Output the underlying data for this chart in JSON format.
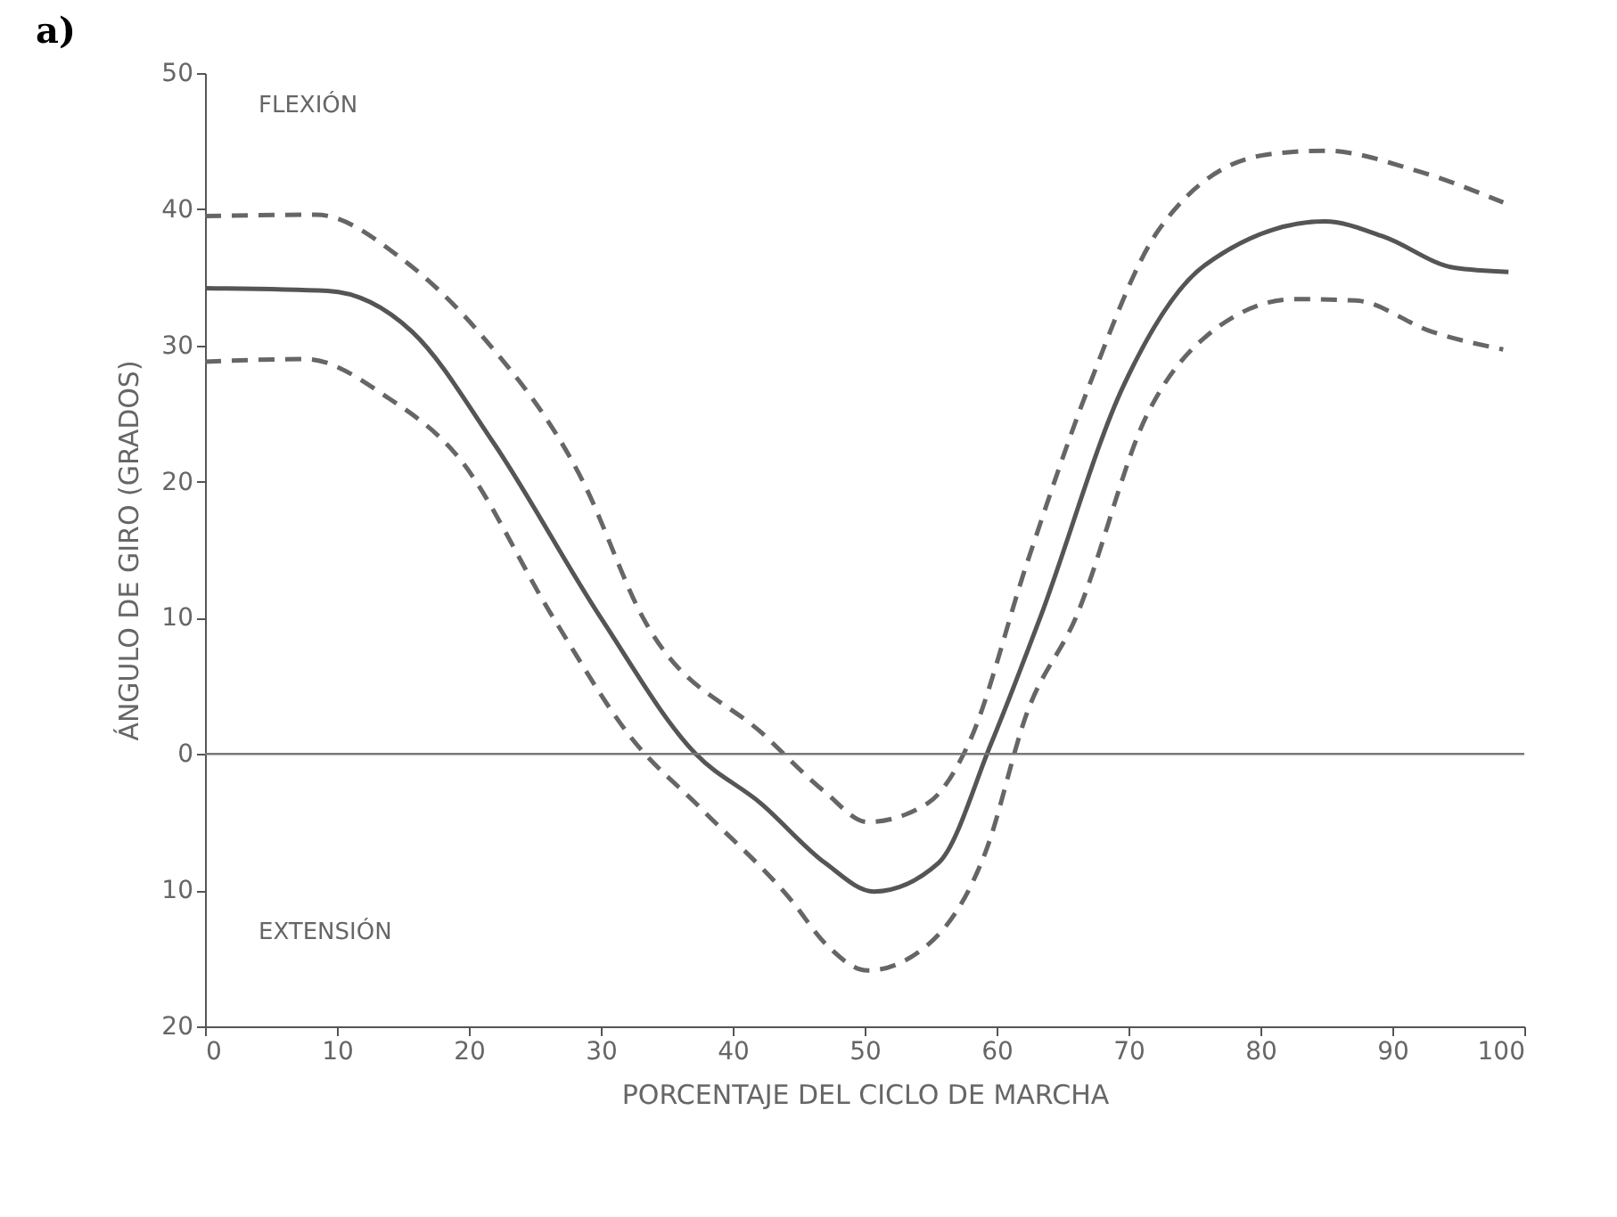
{
  "chart_data": {
    "type": "line",
    "title": "a)",
    "xlabel": "PORCENTAJE DEL CICLO DE MARCHA",
    "ylabel": "ÁNGULO DE GIRO (GRADOS)",
    "annotations": [
      "FLEXIÓN",
      "EXTENSIÓN"
    ],
    "xlim": [
      0,
      100
    ],
    "xticks": [
      0,
      10,
      20,
      30,
      40,
      50,
      60,
      70,
      80,
      90,
      100
    ],
    "ylim": [
      -20,
      50
    ],
    "yticks": [
      {
        "value": -20,
        "label": "20"
      },
      {
        "value": -10,
        "label": "10"
      },
      0,
      10,
      20,
      30,
      40,
      50
    ],
    "grid": false,
    "marker": "none",
    "ref_lines": [
      {
        "axis": "y",
        "value": 0,
        "color": "#777777"
      }
    ],
    "series": [
      {
        "color": "#555555",
        "line_style": "solid",
        "x": [
          0,
          9.3,
          15.7,
          21.9,
          30,
          37.2,
          42.1,
          47,
          50.7,
          55.6,
          59.6,
          63.3,
          69.6,
          75.8,
          84.9,
          89.3,
          94.7,
          98.8
        ],
        "values": [
          34.2,
          34,
          31,
          22.8,
          10,
          0,
          -3.6,
          -8,
          -10.1,
          -8,
          0.8,
          10,
          27,
          35.9,
          39.1,
          38,
          35.7,
          35.4
        ]
      },
      {
        "color": "#666666",
        "line_style": "dashed",
        "x": [
          0,
          8.4,
          15,
          21,
          28.6,
          33.2,
          42.6,
          47,
          50.2,
          54.8,
          57.9,
          62.3,
          67,
          72.3,
          80.4,
          84.9,
          91.6,
          98.4
        ],
        "values": [
          39.5,
          39.6,
          36.3,
          30.7,
          20.1,
          10,
          1.2,
          -2.8,
          -5,
          -3.6,
          0.8,
          14,
          27,
          38.5,
          44,
          44.3,
          42.9,
          40.5
        ]
      },
      {
        "color": "#666666",
        "line_style": "dashed",
        "x": [
          0,
          7.6,
          13.8,
          19.2,
          26.4,
          32.3,
          37.7,
          44.4,
          47.1,
          50.2,
          54.8,
          59.2,
          62.3,
          66,
          71.4,
          75.8,
          82.6,
          87.2,
          93,
          98.4
        ],
        "values": [
          28.8,
          29,
          26.2,
          21.8,
          10,
          1.2,
          -4.1,
          -10.7,
          -14,
          -15.9,
          -14,
          -7.1,
          3,
          10,
          24.9,
          30.6,
          33.4,
          33.3,
          31,
          29.7
        ]
      }
    ]
  }
}
